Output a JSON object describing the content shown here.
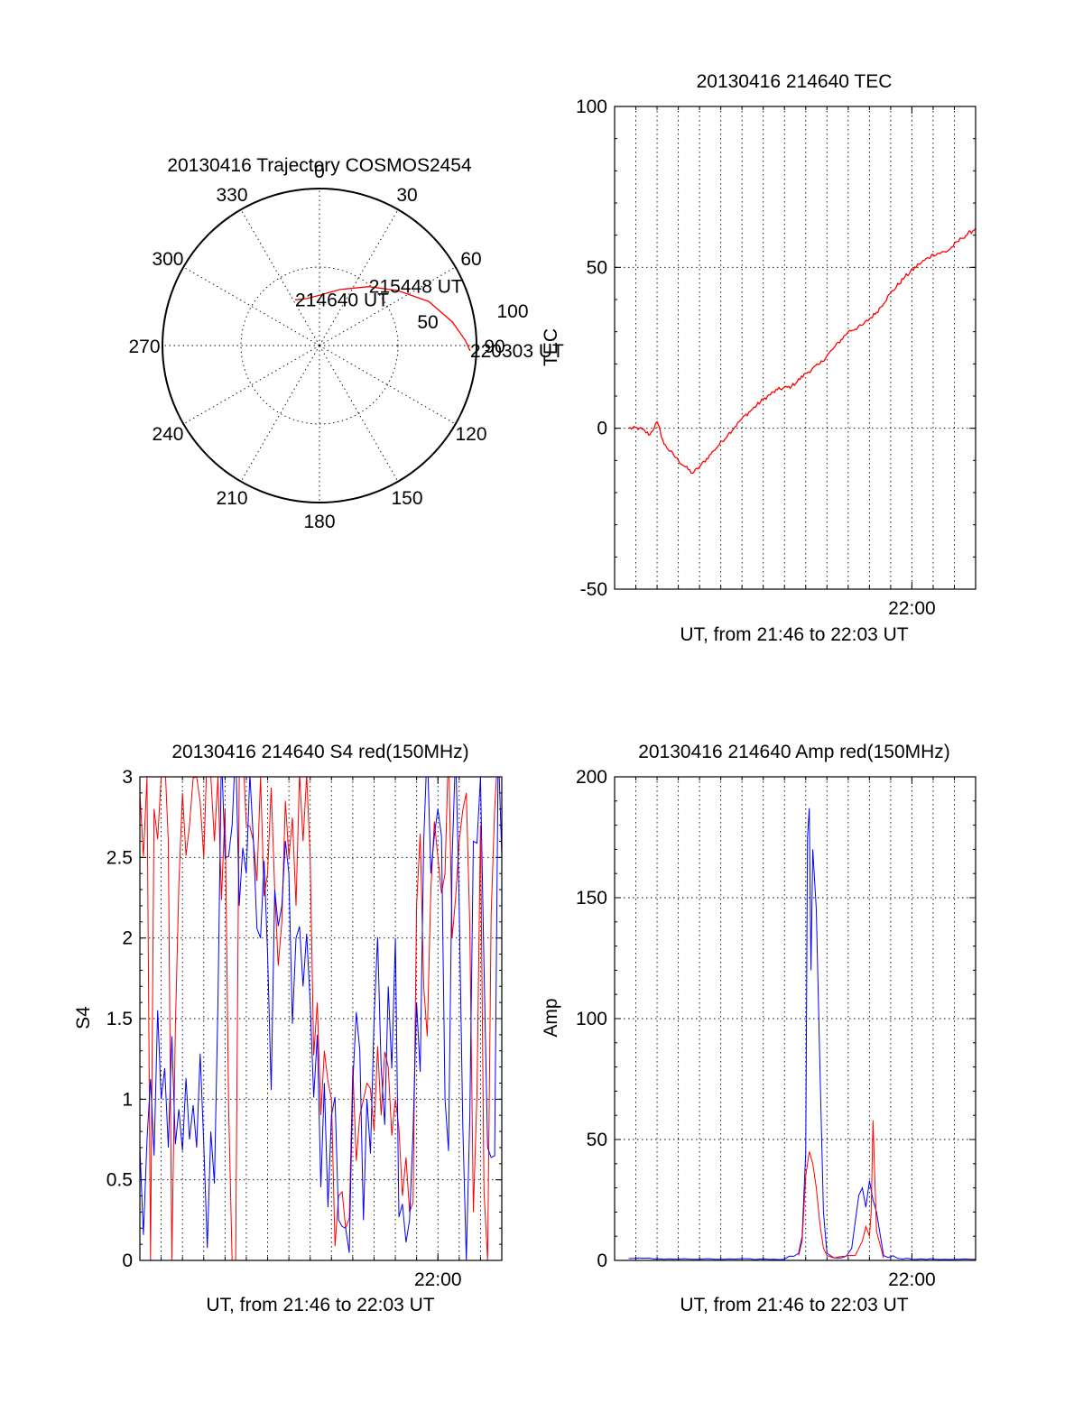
{
  "chart_data": [
    {
      "type": "polar",
      "title": "20130416 Trajectory COSMOS2454",
      "azimuth_labels": [
        "0",
        "30",
        "60",
        "90",
        "120",
        "150",
        "180",
        "210",
        "240",
        "270",
        "300",
        "330"
      ],
      "radial_labels": [
        "50",
        "100"
      ],
      "series": [
        {
          "color": "#ff0000",
          "points": [
            [
              332,
              33
            ],
            [
              345,
              31
            ],
            [
              0,
              32
            ],
            [
              20,
              38
            ],
            [
              40,
              49
            ],
            [
              55,
              61
            ],
            [
              68,
              75
            ],
            [
              80,
              86
            ],
            [
              88,
              93
            ],
            [
              92,
              96
            ]
          ]
        }
      ],
      "point_labels": [
        {
          "text": "214640 UT",
          "az": 332,
          "r": 33
        },
        {
          "text": "215448 UT",
          "az": 40,
          "r": 49
        },
        {
          "text": "220303 UT",
          "az": 92,
          "r": 96
        }
      ]
    },
    {
      "type": "line",
      "title": "20130416 214640 TEC",
      "xlabel": "UT, from 21:46 to 22:03 UT",
      "ylabel": "TEC",
      "xlim": [
        "21:46:00",
        "22:03:00"
      ],
      "x_ticks": [
        "22:00"
      ],
      "ylim": [
        -50,
        100
      ],
      "y_ticks": [
        "-50",
        "0",
        "50",
        "100"
      ],
      "grid": true,
      "series": [
        {
          "color": "#ff0000",
          "x": [
            "21:46:40",
            "21:47:10",
            "21:47:40",
            "21:48:00",
            "21:48:20",
            "21:49:00",
            "21:49:40",
            "21:50:00",
            "21:50:40",
            "21:51:20",
            "21:52:00",
            "21:52:30",
            "21:53:00",
            "21:53:40",
            "21:54:20",
            "21:55:00",
            "21:55:40",
            "21:56:20",
            "21:57:00",
            "21:57:40",
            "21:58:20",
            "21:59:00",
            "21:59:40",
            "22:00:20",
            "22:01:00",
            "22:01:40",
            "22:02:20",
            "22:03:00"
          ],
          "y": [
            0,
            0,
            -2,
            2,
            -5,
            -10,
            -14,
            -12,
            -7,
            -2,
            3,
            6,
            9,
            12,
            13,
            17,
            20,
            25,
            30,
            32,
            36,
            42,
            47,
            51,
            54,
            55,
            59,
            62
          ]
        }
      ]
    },
    {
      "type": "line",
      "title": "20130416 214640 S4 red(150MHz)",
      "xlabel": "UT, from 21:46 to 22:03 UT",
      "ylabel": "S4",
      "xlim": [
        "21:46:00",
        "22:03:00"
      ],
      "x_ticks": [
        "22:00"
      ],
      "ylim": [
        0,
        3
      ],
      "y_ticks": [
        "0",
        "0.5",
        "1",
        "1.5",
        "2",
        "2.5",
        "3"
      ],
      "grid": true,
      "series": [
        {
          "color": "#ff0000",
          "x": [
            "21:46:00",
            "21:46:20",
            "21:46:30",
            "21:46:40",
            "21:47:00",
            "21:47:20",
            "21:47:30",
            "21:48:00",
            "21:48:20",
            "21:48:40",
            "21:49:00",
            "21:49:20",
            "21:49:30",
            "21:49:40",
            "21:50:00",
            "21:50:20",
            "21:50:30",
            "21:50:40",
            "21:51:00",
            "21:51:20",
            "21:51:40",
            "21:52:00",
            "21:52:20",
            "21:52:40",
            "21:53:00",
            "21:53:20",
            "21:53:40",
            "21:54:00",
            "21:54:20",
            "21:54:40",
            "21:55:00",
            "21:55:20",
            "21:55:40",
            "21:56:00",
            "21:56:20",
            "21:56:40",
            "21:57:00",
            "21:57:20",
            "21:57:40",
            "21:58:00",
            "21:58:20",
            "21:58:40",
            "21:59:00",
            "21:59:20",
            "21:59:40",
            "22:00:00",
            "22:00:20",
            "22:00:40",
            "22:01:00",
            "22:01:20",
            "22:01:40",
            "22:02:00",
            "22:02:20",
            "22:02:40",
            "22:03:00"
          ],
          "y": [
            2.9,
            3,
            0,
            2.8,
            3,
            2.6,
            0,
            2.9,
            2.7,
            3,
            2.5,
            3,
            2.6,
            3,
            2.8,
            0,
            0,
            3,
            2.7,
            2.6,
            3,
            2.4,
            2.3,
            2.1,
            2.5,
            2.2,
            2.6,
            2.5,
            1.6,
            1.3,
            1.0,
            0.4,
            0.2,
            1.2,
            0.9,
            1.1,
            0.8,
            0.9,
            1.2,
            1.0,
            0.4,
            0.3,
            2.2,
            1.7,
            2.3,
            2.5,
            2.4,
            2.0,
            2.6,
            2.9,
            0.3,
            2.7,
            0,
            2.8,
            3
          ]
        },
        {
          "color": "#0000ff",
          "x": [
            "21:46:00",
            "21:46:20",
            "21:46:40",
            "21:47:00",
            "21:47:20",
            "21:47:40",
            "21:48:00",
            "21:48:20",
            "21:48:40",
            "21:49:00",
            "21:49:20",
            "21:49:40",
            "21:50:00",
            "21:50:20",
            "21:50:40",
            "21:51:00",
            "21:51:20",
            "21:51:40",
            "21:52:00",
            "21:52:20",
            "21:52:40",
            "21:53:00",
            "21:53:20",
            "21:53:40",
            "21:54:00",
            "21:54:20",
            "21:54:40",
            "21:55:00",
            "21:55:20",
            "21:55:40",
            "21:56:00",
            "21:56:20",
            "21:56:40",
            "21:57:00",
            "21:57:20",
            "21:57:40",
            "21:58:00",
            "21:58:20",
            "21:58:40",
            "21:59:00",
            "21:59:20",
            "21:59:40",
            "22:00:00",
            "22:00:20",
            "22:00:40",
            "22:01:00",
            "22:01:20",
            "22:01:40",
            "22:02:00",
            "22:02:20",
            "22:02:40",
            "22:03:00"
          ],
          "y": [
            0.7,
            0.75,
            0.65,
            1.0,
            0.7,
            0.72,
            0.68,
            0.75,
            0.7,
            0.72,
            0.8,
            1.6,
            2.5,
            2.7,
            2.2,
            2.4,
            2.6,
            2.0,
            1.9,
            2.3,
            2.2,
            2.4,
            2.0,
            1.7,
            1.6,
            1.4,
            1.1,
            0.9,
            0.25,
            0.2,
            1.1,
            1.3,
            1.0,
            1.5,
            1.2,
            1.7,
            2.0,
            0.35,
            0.25,
            1.6,
            2.6,
            2.4,
            2.8,
            1.0,
            2.5,
            2.2,
            0.0,
            2.6,
            3.0,
            0.7,
            0.65,
            2.5
          ]
        }
      ]
    },
    {
      "type": "line",
      "title": "20130416 214640 Amp red(150MHz)",
      "xlabel": "UT, from 21:46 to 22:03 UT",
      "ylabel": "Amp",
      "xlim": [
        "21:46:00",
        "22:03:00"
      ],
      "x_ticks": [
        "22:00"
      ],
      "ylim": [
        0,
        200
      ],
      "y_ticks": [
        "0",
        "50",
        "100",
        "150",
        "200"
      ],
      "grid": true,
      "series": [
        {
          "color": "#0000ff",
          "x": [
            "21:46:40",
            "21:50:00",
            "21:54:00",
            "21:54:40",
            "21:54:50",
            "21:55:00",
            "21:55:05",
            "21:55:10",
            "21:55:15",
            "21:55:20",
            "21:55:30",
            "21:55:40",
            "21:55:50",
            "21:56:00",
            "21:56:20",
            "21:56:40",
            "21:57:10",
            "21:57:30",
            "21:57:40",
            "21:57:50",
            "21:58:00",
            "21:58:10",
            "21:58:20",
            "21:58:40",
            "22:00:00",
            "22:02:00",
            "22:03:00"
          ],
          "y": [
            0.8,
            0.5,
            0.5,
            3,
            10,
            45,
            175,
            187,
            120,
            170,
            145,
            80,
            20,
            3,
            1,
            1,
            5,
            27,
            30,
            22,
            33,
            25,
            20,
            2,
            0.5,
            0.5,
            0.5
          ]
        },
        {
          "color": "#ff0000",
          "x": [
            "21:54:40",
            "21:54:50",
            "21:55:00",
            "21:55:10",
            "21:55:20",
            "21:55:30",
            "21:55:40",
            "21:55:50",
            "21:56:00",
            "21:56:20",
            "21:57:20",
            "21:57:40",
            "21:57:50",
            "21:58:00",
            "21:58:05",
            "21:58:10",
            "21:58:20",
            "21:58:40"
          ],
          "y": [
            2,
            8,
            35,
            45,
            40,
            30,
            15,
            5,
            2,
            1,
            2,
            8,
            14,
            10,
            20,
            58,
            12,
            1
          ]
        }
      ]
    }
  ]
}
